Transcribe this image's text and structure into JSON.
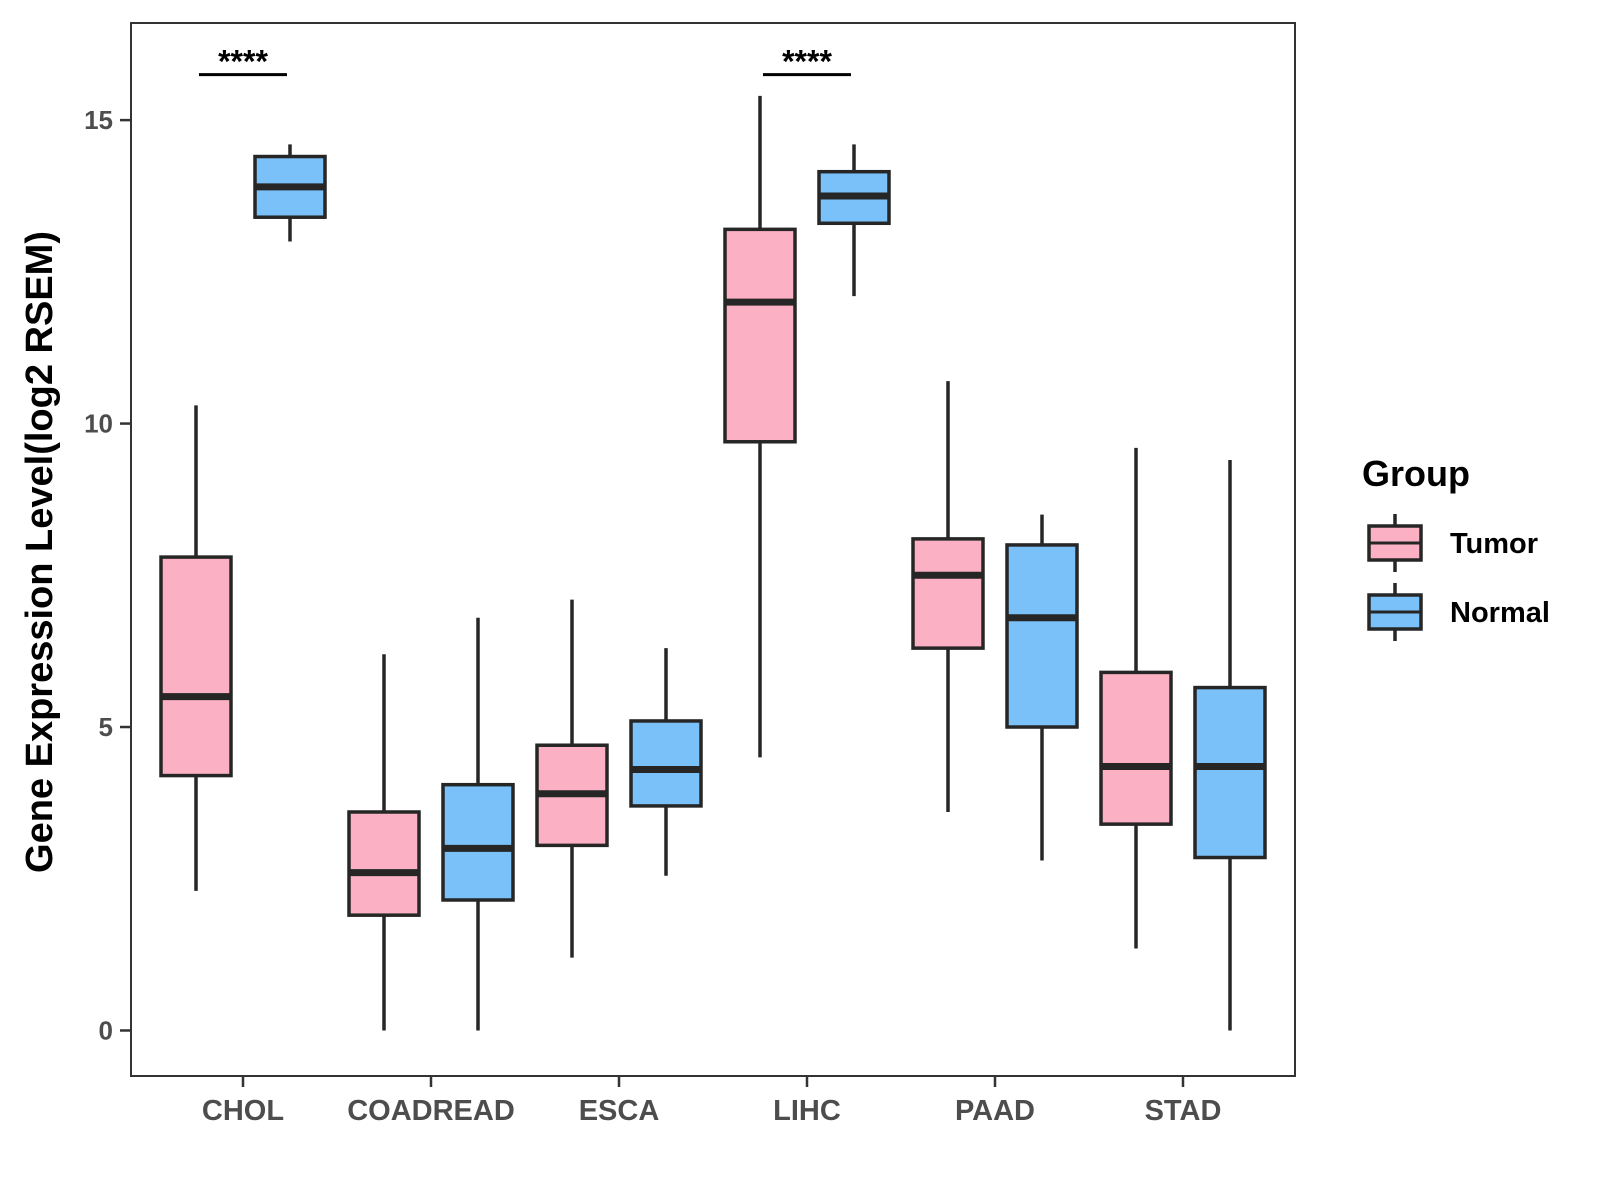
{
  "chart_data": {
    "type": "boxplot",
    "ylabel": "Gene Expression Level(log2 RSEM)",
    "xlabel": "",
    "ylim": [
      -0.75,
      16.6
    ],
    "yticks": [
      0,
      5,
      10,
      15
    ],
    "categories": [
      "CHOL",
      "COADREAD",
      "ESCA",
      "LIHC",
      "PAAD",
      "STAD"
    ],
    "legend": {
      "title": "Group",
      "position": "right",
      "entries": [
        {
          "name": "Tumor",
          "color": "#fbb1c3"
        },
        {
          "name": "Normal",
          "color": "#79c1f8"
        }
      ]
    },
    "series": [
      {
        "name": "Tumor",
        "color": "#fbb1c3",
        "boxes": [
          {
            "min": 2.3,
            "q1": 4.2,
            "median": 5.5,
            "q3": 7.8,
            "max": 10.3
          },
          {
            "min": 0.0,
            "q1": 1.9,
            "median": 2.6,
            "q3": 3.6,
            "max": 6.2
          },
          {
            "min": 1.2,
            "q1": 3.05,
            "median": 3.9,
            "q3": 4.7,
            "max": 7.1
          },
          {
            "min": 4.5,
            "q1": 9.7,
            "median": 12.0,
            "q3": 13.2,
            "max": 15.4
          },
          {
            "min": 3.6,
            "q1": 6.3,
            "median": 7.5,
            "q3": 8.1,
            "max": 10.7
          },
          {
            "min": 1.35,
            "q1": 3.4,
            "median": 4.35,
            "q3": 5.9,
            "max": 9.6
          }
        ]
      },
      {
        "name": "Normal",
        "color": "#79c1f8",
        "boxes": [
          {
            "min": 13.0,
            "q1": 13.4,
            "median": 13.9,
            "q3": 14.4,
            "max": 14.6
          },
          {
            "min": 0.0,
            "q1": 2.15,
            "median": 3.0,
            "q3": 4.05,
            "max": 6.8
          },
          {
            "min": 2.55,
            "q1": 3.7,
            "median": 4.3,
            "q3": 5.1,
            "max": 6.3
          },
          {
            "min": 12.1,
            "q1": 13.3,
            "median": 13.75,
            "q3": 14.15,
            "max": 14.6
          },
          {
            "min": 2.8,
            "q1": 5.0,
            "median": 6.8,
            "q3": 8.0,
            "max": 8.5
          },
          {
            "min": 0.0,
            "q1": 2.85,
            "median": 4.35,
            "q3": 5.65,
            "max": 9.4
          }
        ]
      }
    ],
    "annotations": [
      {
        "category": "CHOL",
        "text": "****",
        "y": 15.75
      },
      {
        "category": "LIHC",
        "text": "****",
        "y": 15.75
      }
    ]
  }
}
